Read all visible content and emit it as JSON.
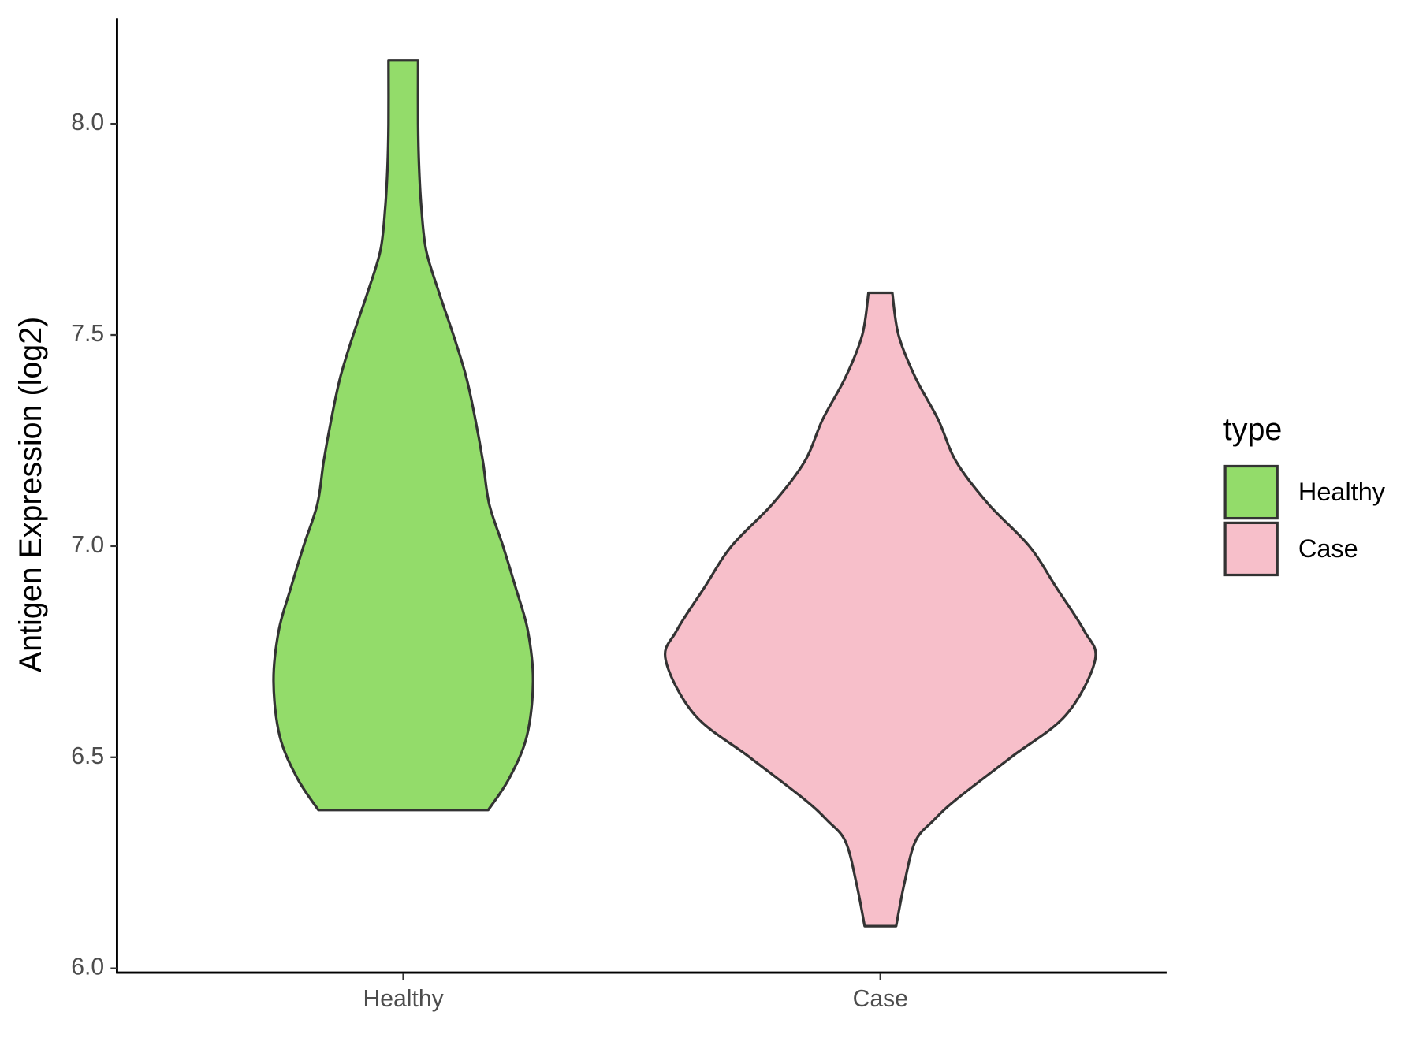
{
  "chart_data": {
    "type": "violin",
    "y_label": "Antigen Expression (log2)",
    "legend_title": "type",
    "categories": [
      "Healthy",
      "Case"
    ],
    "ylim": [
      5.99,
      8.25
    ],
    "yticks": [
      {
        "value": 6,
        "label": "6.0"
      },
      6.5,
      {
        "value": 7,
        "label": "7.0"
      },
      7.5,
      {
        "value": 8,
        "label": "8.0"
      }
    ],
    "legend_position": "right",
    "series": [
      {
        "name": "Healthy",
        "color": "#93dc6a",
        "y": [
          6.375,
          6.45,
          6.55,
          6.68,
          6.8,
          6.9,
          7.0,
          7.1,
          7.2,
          7.3,
          7.4,
          7.5,
          7.6,
          7.7,
          7.8,
          7.9,
          8.0,
          8.15
        ],
        "width": [
          0.178,
          0.222,
          0.259,
          0.272,
          0.261,
          0.236,
          0.209,
          0.18,
          0.167,
          0.151,
          0.132,
          0.105,
          0.075,
          0.048,
          0.038,
          0.033,
          0.031,
          0.031
        ]
      },
      {
        "name": "Case",
        "color": "#f7bfca",
        "y": [
          6.1,
          6.2,
          6.3,
          6.35,
          6.4,
          6.5,
          6.6,
          6.73,
          6.8,
          6.9,
          7.0,
          7.1,
          7.2,
          7.3,
          7.4,
          7.5,
          7.6
        ],
        "width": [
          0.033,
          0.05,
          0.073,
          0.111,
          0.159,
          0.274,
          0.389,
          0.45,
          0.427,
          0.37,
          0.312,
          0.226,
          0.159,
          0.121,
          0.073,
          0.038,
          0.025
        ]
      }
    ]
  }
}
